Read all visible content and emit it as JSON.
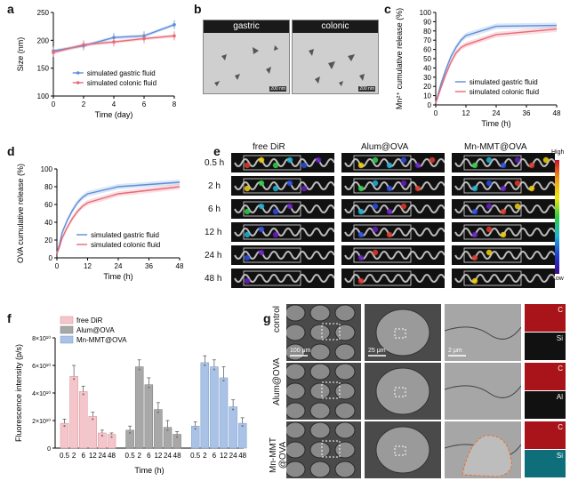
{
  "panel_labels": {
    "a": "a",
    "b": "b",
    "c": "c",
    "d": "d",
    "e": "e",
    "f": "f",
    "g": "g"
  },
  "colors": {
    "gastric": "#5b8fd9",
    "colonic": "#e86a78",
    "freeDiR": "#f4c6cb",
    "alum": "#a8a8a8",
    "mn": "#a9c2e6"
  },
  "chart_data": [
    {
      "id": "a",
      "type": "line",
      "xlabel": "Time (day)",
      "ylabel": "Size (nm)",
      "xlim": [
        0,
        8
      ],
      "ylim": [
        100,
        250
      ],
      "xticks": [
        0,
        2,
        4,
        6,
        8
      ],
      "yticks": [
        100,
        150,
        200,
        250
      ],
      "x": [
        0,
        2,
        4,
        6,
        8
      ],
      "series": [
        {
          "name": "simulated gastric fluid",
          "values": [
            181,
            190,
            205,
            208,
            228
          ]
        },
        {
          "name": "simulated colonic fluid",
          "values": [
            178,
            192,
            197,
            203,
            208
          ]
        }
      ],
      "legend": "bottom-right"
    },
    {
      "id": "c",
      "type": "line",
      "xlabel": "Time (h)",
      "ylabel": "Mn²⁺ cumulative release (%)",
      "xlim": [
        0,
        48
      ],
      "ylim": [
        0,
        100
      ],
      "xticks": [
        0,
        12,
        24,
        36,
        48
      ],
      "yticks": [
        0,
        10,
        20,
        30,
        40,
        50,
        60,
        70,
        80,
        90,
        100
      ],
      "x": [
        0,
        1,
        2,
        4,
        6,
        8,
        10,
        12,
        24,
        48
      ],
      "series": [
        {
          "name": "simulated gastric fluid",
          "values": [
            2,
            12,
            22,
            38,
            52,
            62,
            70,
            75,
            85,
            86
          ]
        },
        {
          "name": "simulated colonic fluid",
          "values": [
            2,
            10,
            18,
            33,
            46,
            56,
            62,
            65,
            76,
            82
          ]
        }
      ],
      "legend": "bottom-right"
    },
    {
      "id": "d",
      "type": "line",
      "xlabel": "Time (h)",
      "ylabel": "OVA cumulative release (%)",
      "xlim": [
        0,
        48
      ],
      "ylim": [
        0,
        100
      ],
      "xticks": [
        0,
        12,
        24,
        36,
        48
      ],
      "yticks": [
        0,
        20,
        40,
        60,
        80,
        100
      ],
      "x": [
        0,
        1,
        2,
        4,
        6,
        8,
        10,
        12,
        24,
        48
      ],
      "series": [
        {
          "name": "simulated gastric fluid",
          "values": [
            5,
            15,
            28,
            42,
            53,
            62,
            68,
            72,
            80,
            85
          ]
        },
        {
          "name": "simulated colonic fluid",
          "values": [
            5,
            12,
            22,
            34,
            44,
            52,
            58,
            62,
            72,
            80
          ]
        }
      ],
      "legend": "bottom-right"
    },
    {
      "id": "f",
      "type": "bar",
      "xlabel": "Time (h)",
      "ylabel": "Fluorescence intensity (p/s)",
      "ylim": [
        0,
        8
      ],
      "yticks": [
        "0",
        "2×10¹⁰",
        "4×10¹⁰",
        "6×10¹⁰",
        "8×10¹⁰"
      ],
      "categories": [
        "0.5",
        "2",
        "6",
        "12",
        "24",
        "48"
      ],
      "series": [
        {
          "name": "free DiR",
          "values": [
            1.8,
            5.2,
            4.1,
            2.3,
            1.1,
            1.0
          ]
        },
        {
          "name": "Alum@OVA",
          "values": [
            1.3,
            5.9,
            4.6,
            2.8,
            1.5,
            1.0
          ]
        },
        {
          "name": "Mn-MMT@OVA",
          "values": [
            1.6,
            6.2,
            5.9,
            5.1,
            3.0,
            1.8
          ]
        }
      ],
      "errors": [
        [
          0.3,
          0.8,
          0.4,
          0.3,
          0.2,
          0.1
        ],
        [
          0.3,
          0.5,
          0.5,
          0.5,
          0.5,
          0.2
        ],
        [
          0.3,
          0.5,
          0.5,
          0.8,
          0.5,
          0.4
        ]
      ],
      "legend": "top-left"
    }
  ],
  "micro": {
    "gastric": "gastric",
    "colonic": "colonic",
    "scale": "200 nm"
  },
  "ivis": {
    "groups": [
      "free DiR",
      "Alum@OVA",
      "Mn-MMT@OVA"
    ],
    "times": [
      "0.5 h",
      "2 h",
      "6 h",
      "12 h",
      "24 h",
      "48 h"
    ],
    "scale_high": "High",
    "scale_low": "Low"
  },
  "sem": {
    "rows": [
      "control",
      "Alum@OVA",
      "Mn-MMT\n@OVA"
    ],
    "scales": [
      "100 μm",
      "25 μm",
      "2 μm"
    ],
    "eds": [
      [
        "C",
        "Si"
      ],
      [
        "C",
        "Al"
      ],
      [
        "C",
        "Si"
      ]
    ]
  }
}
